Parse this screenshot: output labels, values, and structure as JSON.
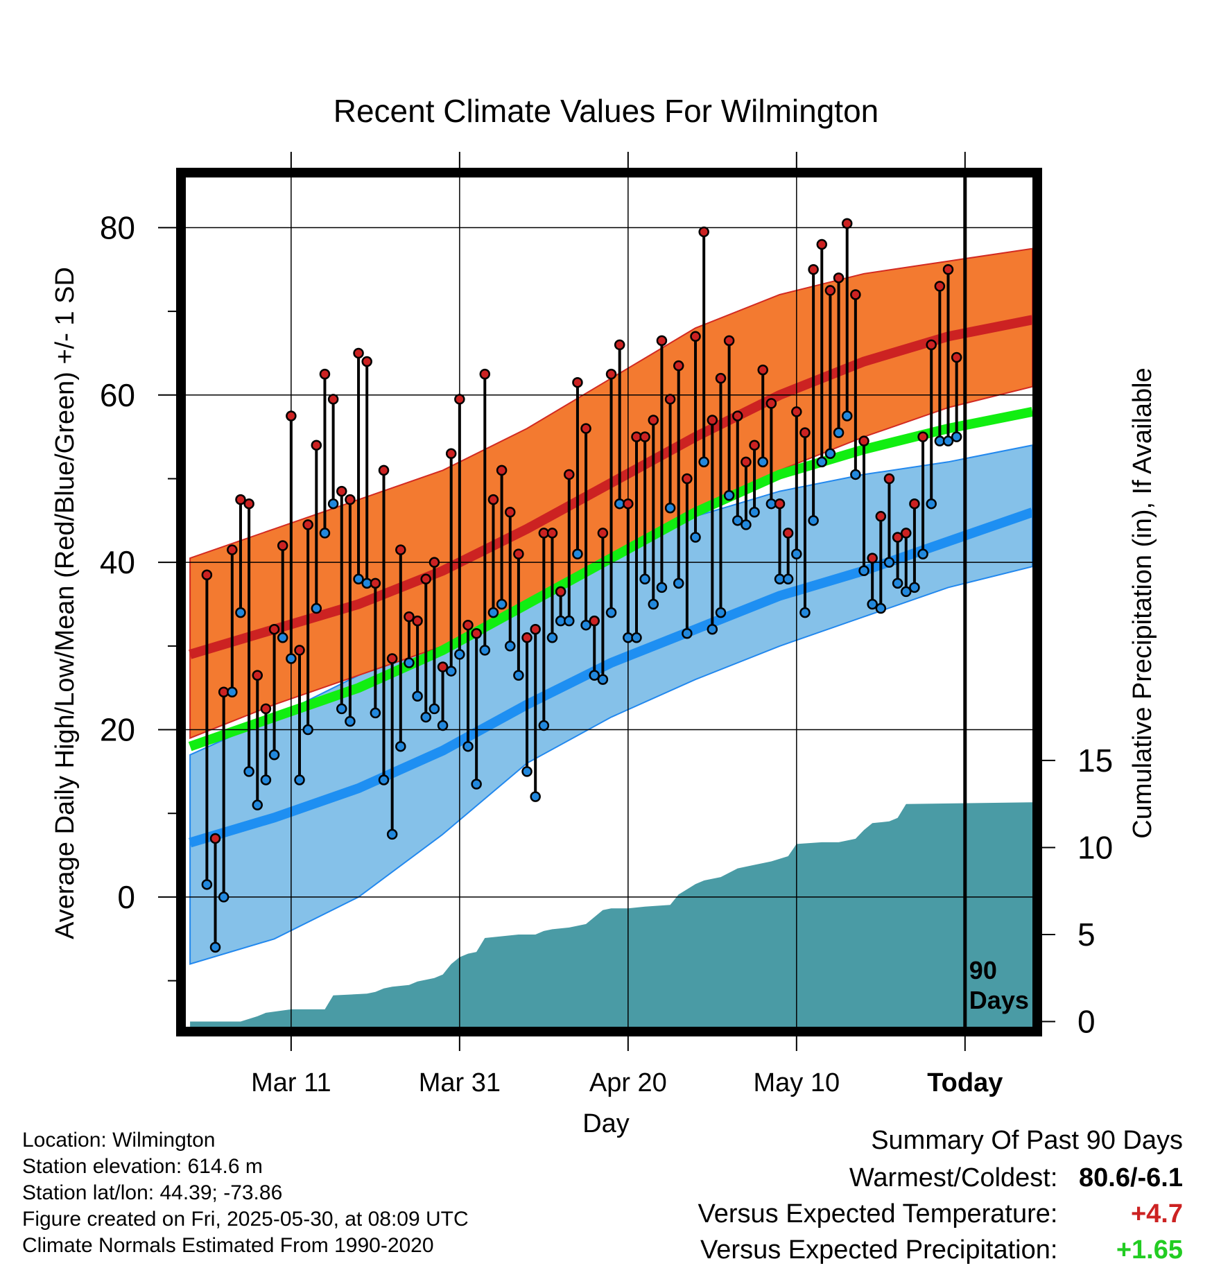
{
  "chart_data": {
    "type": "line",
    "title": "Recent Climate Values For Wilmington",
    "xlabel": "Day",
    "ylabel": "Average Daily High/Low/Mean (Red/Blue/Green) +/- 1 SD",
    "y2label": "Cumulative Precipitation (in), If Available",
    "ylim": [
      -15.5,
      86
    ],
    "y2lim": [
      -0.3,
      48.5
    ],
    "xlim": [
      -12.5,
      88
    ],
    "x_ticks": [
      {
        "x": 0,
        "label": "Mar 11"
      },
      {
        "x": 20,
        "label": "Mar 31"
      },
      {
        "x": 40,
        "label": "Apr 20"
      },
      {
        "x": 60,
        "label": "May 10"
      },
      {
        "x": 80,
        "label": "Today"
      }
    ],
    "y_ticks": [
      0,
      20,
      40,
      60,
      80
    ],
    "y2_ticks": [
      0,
      5,
      10,
      15
    ],
    "today_marker": {
      "x": 80,
      "label_line1": "90",
      "label_line2": "Days"
    },
    "normals": {
      "x": [
        -12,
        -2,
        8,
        18,
        28,
        38,
        48,
        58,
        68,
        78,
        88
      ],
      "high_mean": [
        29,
        32,
        35,
        39,
        44,
        49.5,
        55,
        60,
        64,
        67,
        69
      ],
      "high_upper": [
        40.5,
        44,
        47.5,
        51,
        56,
        62,
        68,
        72,
        74.5,
        76,
        77.5
      ],
      "high_lower": [
        19,
        23,
        26.5,
        30,
        34.5,
        40,
        45.5,
        51,
        55,
        58.5,
        61
      ],
      "low_mean": [
        6.5,
        9.5,
        13,
        17.5,
        23,
        28,
        32,
        36,
        39,
        42.5,
        46
      ],
      "low_upper": [
        17,
        21.5,
        26.5,
        31,
        36,
        41,
        45.5,
        48.5,
        50.5,
        52,
        54
      ],
      "low_lower": [
        -8,
        -5,
        0,
        7.5,
        16,
        21.5,
        26,
        30,
        33.5,
        37,
        39.5
      ],
      "avg_mean": [
        18,
        21.5,
        25,
        29.5,
        35,
        40.5,
        46,
        50.5,
        53.5,
        56,
        58
      ]
    },
    "series": [
      {
        "name": "High",
        "color": "#cc2222",
        "x": [
          -10,
          -9,
          -8,
          -7,
          -6,
          -5,
          -4,
          -3,
          -2,
          -1,
          0,
          1,
          2,
          3,
          4,
          5,
          6,
          7,
          8,
          9,
          10,
          11,
          12,
          13,
          14,
          15,
          16,
          17,
          18,
          19,
          20,
          21,
          22,
          23,
          24,
          25,
          26,
          27,
          28,
          29,
          30,
          31,
          32,
          33,
          34,
          35,
          36,
          37,
          38,
          39,
          40,
          41,
          42,
          43,
          44,
          45,
          46,
          47,
          48,
          49,
          50,
          51,
          52,
          53,
          54,
          55,
          56,
          57,
          58,
          59,
          60,
          61,
          62,
          63,
          64,
          65,
          66,
          67,
          68,
          69,
          70,
          71,
          72,
          73,
          74,
          75,
          76,
          77,
          78,
          79
        ],
        "values": [
          38.5,
          7,
          24.5,
          41.5,
          47.5,
          47,
          26.5,
          22.5,
          32,
          42,
          57.5,
          29.5,
          44.5,
          54,
          62.5,
          59.5,
          48.5,
          47.5,
          65,
          64,
          37.5,
          51,
          28.5,
          41.5,
          33.5,
          33,
          38,
          40,
          27.5,
          53,
          59.5,
          32.5,
          31.5,
          62.5,
          47.5,
          51,
          46,
          41,
          31,
          32,
          43.5,
          43.5,
          36.5,
          50.5,
          61.5,
          56,
          33,
          43.5,
          62.5,
          66,
          47,
          55,
          55,
          57,
          66.5,
          59.5,
          63.5,
          50,
          67,
          79.5,
          57,
          62,
          66.5,
          57.5,
          52,
          54,
          63,
          59,
          47,
          43.5,
          58,
          55.5,
          75,
          78,
          72.5,
          74,
          80.5,
          72,
          54.5,
          40.5,
          45.5,
          50,
          43,
          43.5,
          47,
          55,
          66,
          73,
          75,
          64.5
        ]
      },
      {
        "name": "Low",
        "color": "#2288dd",
        "x": [
          -10,
          -9,
          -8,
          -7,
          -6,
          -5,
          -4,
          -3,
          -2,
          -1,
          0,
          1,
          2,
          3,
          4,
          5,
          6,
          7,
          8,
          9,
          10,
          11,
          12,
          13,
          14,
          15,
          16,
          17,
          18,
          19,
          20,
          21,
          22,
          23,
          24,
          25,
          26,
          27,
          28,
          29,
          30,
          31,
          32,
          33,
          34,
          35,
          36,
          37,
          38,
          39,
          40,
          41,
          42,
          43,
          44,
          45,
          46,
          47,
          48,
          49,
          50,
          51,
          52,
          53,
          54,
          55,
          56,
          57,
          58,
          59,
          60,
          61,
          62,
          63,
          64,
          65,
          66,
          67,
          68,
          69,
          70,
          71,
          72,
          73,
          74,
          75,
          76,
          77,
          78,
          79
        ],
        "values": [
          1.5,
          -6,
          0,
          24.5,
          34,
          15,
          11,
          14,
          17,
          31,
          28.5,
          14,
          20,
          34.5,
          43.5,
          47,
          22.5,
          21,
          38,
          37.5,
          22,
          14,
          7.5,
          18,
          28,
          24,
          21.5,
          22.5,
          20.5,
          27,
          29,
          18,
          13.5,
          29.5,
          34,
          35,
          30,
          26.5,
          15,
          12,
          20.5,
          31,
          33,
          33,
          41,
          32.5,
          26.5,
          26,
          34,
          47,
          31,
          31,
          38,
          35,
          37,
          46.5,
          37.5,
          31.5,
          43,
          52,
          32,
          34,
          48,
          45,
          44.5,
          46,
          52,
          47,
          38,
          38,
          41,
          34,
          45,
          52,
          53,
          55.5,
          57.5,
          50.5,
          39,
          35,
          34.5,
          40,
          37.5,
          36.5,
          37,
          41,
          47,
          54.5,
          54.5,
          55
        ]
      }
    ],
    "precip": {
      "name": "Cumulative Precipitation",
      "color": "#4a9ba5",
      "x": [
        -12,
        -6,
        -4,
        -3,
        0,
        4,
        5,
        9,
        10,
        11,
        12,
        14,
        15,
        17,
        18,
        19,
        20,
        21,
        22,
        23,
        25,
        27,
        29,
        30,
        31,
        33,
        35,
        37,
        38,
        40,
        42,
        45,
        46,
        47,
        48,
        49,
        51,
        53,
        55,
        57,
        59,
        60,
        63,
        65,
        67,
        68,
        69,
        71,
        72,
        73,
        88
      ],
      "values": [
        0,
        0,
        0.3,
        0.5,
        0.7,
        0.7,
        1.5,
        1.6,
        1.7,
        1.9,
        2.0,
        2.1,
        2.3,
        2.5,
        2.7,
        3.3,
        3.7,
        3.9,
        4.0,
        4.8,
        4.9,
        5.0,
        5.0,
        5.2,
        5.3,
        5.4,
        5.6,
        6.4,
        6.5,
        6.5,
        6.6,
        6.7,
        7.3,
        7.6,
        7.9,
        8.1,
        8.3,
        8.8,
        9.0,
        9.2,
        9.5,
        10.2,
        10.3,
        10.3,
        10.5,
        11.0,
        11.4,
        11.5,
        11.7,
        12.5,
        12.6
      ]
    }
  },
  "info": {
    "location": "Location: Wilmington",
    "elevation": "Station elevation: 614.6 m",
    "latlon": "Station lat/lon: 44.39; -73.86",
    "created": "Figure created on Fri, 2025-05-30, at 08:09 UTC",
    "normals": "Climate Normals Estimated From 1990-2020"
  },
  "summary": {
    "title": "Summary Of Past 90 Days",
    "warmest_label": "Warmest/Coldest:",
    "warmest_value": "80.6/-6.1",
    "temp_label": "Versus Expected Temperature:",
    "temp_value": "+4.7",
    "temp_color": "#cc2222",
    "precip_label": "Versus Expected Precipitation:",
    "precip_value": "+1.65",
    "precip_color": "#22cc22"
  }
}
